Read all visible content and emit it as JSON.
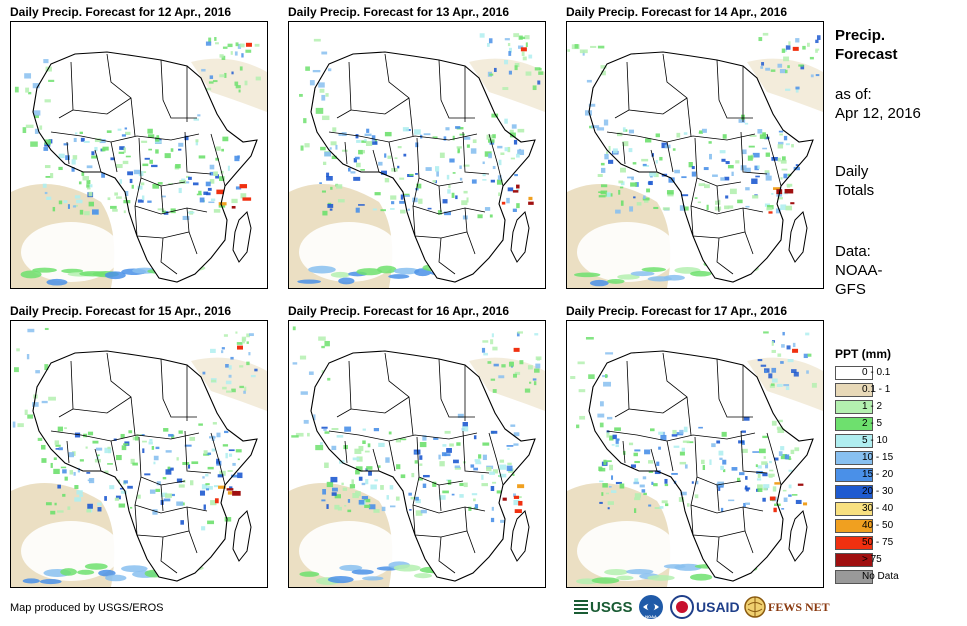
{
  "panels": [
    {
      "title": "Daily Precip. Forecast for 12 Apr., 2016"
    },
    {
      "title": "Daily Precip. Forecast for 13 Apr., 2016"
    },
    {
      "title": "Daily Precip. Forecast for 14 Apr., 2016"
    },
    {
      "title": "Daily Precip. Forecast for 15 Apr., 2016"
    },
    {
      "title": "Daily Precip. Forecast for 16 Apr., 2016"
    },
    {
      "title": "Daily Precip. Forecast for 17 Apr., 2016"
    }
  ],
  "side": {
    "heading_line1": "Precip.",
    "heading_line2": "Forecast",
    "asof_line1": "as of:",
    "asof_line2": "Apr 12, 2016",
    "totals_line1": "Daily",
    "totals_line2": "Totals",
    "data_line1": "Data:",
    "data_line2": "NOAA-",
    "data_line3": "GFS"
  },
  "legend": {
    "title": "PPT (mm)",
    "items": [
      {
        "label": "0 - 0.1",
        "color": "#ffffff"
      },
      {
        "label": "0.1 - 1",
        "color": "#e8d9b8"
      },
      {
        "label": "1 - 2",
        "color": "#b4f0b0"
      },
      {
        "label": "2 - 5",
        "color": "#6ee06e"
      },
      {
        "label": "5 - 10",
        "color": "#b0eef0"
      },
      {
        "label": "10 - 15",
        "color": "#88c0f0"
      },
      {
        "label": "15 - 20",
        "color": "#4a90e8"
      },
      {
        "label": "20 - 30",
        "color": "#1e5ad0"
      },
      {
        "label": "30 - 40",
        "color": "#f8e080"
      },
      {
        "label": "40 - 50",
        "color": "#f0a020"
      },
      {
        "label": "50 - 75",
        "color": "#f03010"
      },
      {
        "label": "> 75",
        "color": "#a01010"
      },
      {
        "label": "No Data",
        "color": "#999999"
      }
    ]
  },
  "footer": {
    "credit": "Map produced by USGS/EROS"
  },
  "logos": {
    "usgs": "USGS",
    "noaa": "NOAA",
    "usaid": "USAID",
    "fewsnet": "FEWS NET"
  }
}
